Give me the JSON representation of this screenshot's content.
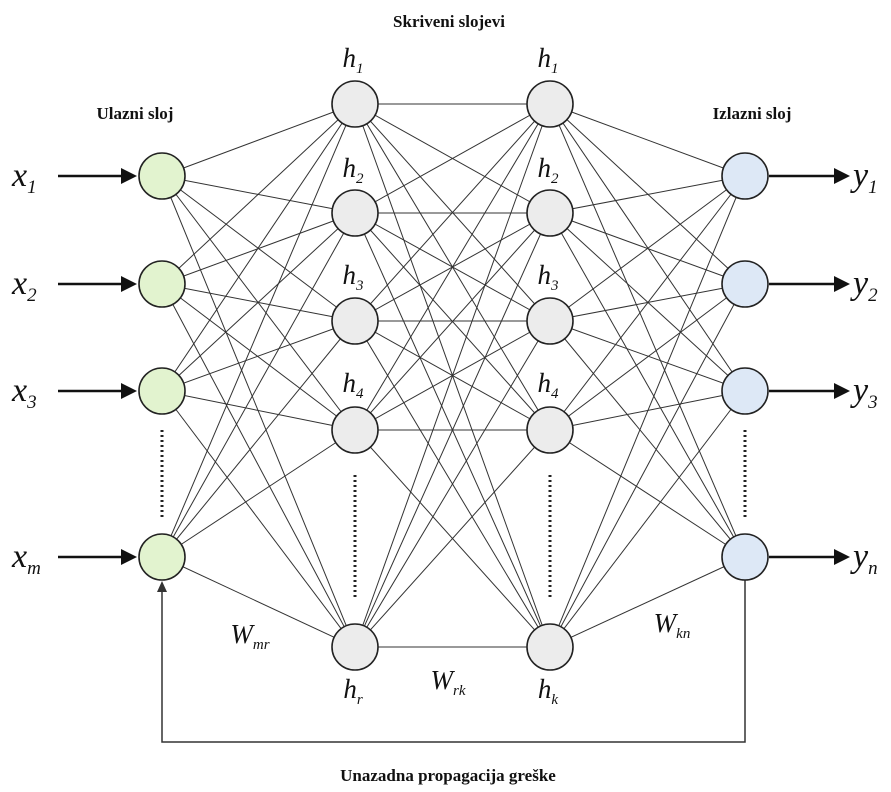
{
  "labels": {
    "hidden_layers": "Skriveni slojevi",
    "input_layer": "Ulazni sloj",
    "output_layer": "Izlazni sloj",
    "backprop": "Unazadna propagacija greške"
  },
  "inputs": [
    {
      "base": "x",
      "sub": "1"
    },
    {
      "base": "x",
      "sub": "2"
    },
    {
      "base": "x",
      "sub": "3"
    },
    {
      "base": "x",
      "sub": "m"
    }
  ],
  "hidden1": [
    {
      "base": "h",
      "sub": "1"
    },
    {
      "base": "h",
      "sub": "2"
    },
    {
      "base": "h",
      "sub": "3"
    },
    {
      "base": "h",
      "sub": "4"
    },
    {
      "base": "h",
      "sub": "r"
    }
  ],
  "hidden2": [
    {
      "base": "h",
      "sub": "1"
    },
    {
      "base": "h",
      "sub": "2"
    },
    {
      "base": "h",
      "sub": "3"
    },
    {
      "base": "h",
      "sub": "4"
    },
    {
      "base": "h",
      "sub": "k"
    }
  ],
  "outputs": [
    {
      "base": "y",
      "sub": "1"
    },
    {
      "base": "y",
      "sub": "2"
    },
    {
      "base": "y",
      "sub": "3"
    },
    {
      "base": "y",
      "sub": "n"
    }
  ],
  "weights": [
    {
      "base": "W",
      "sub": "mr"
    },
    {
      "base": "W",
      "sub": "rk"
    },
    {
      "base": "W",
      "sub": "kn"
    }
  ],
  "colors": {
    "input_fill": "#e2f3cf",
    "hidden_fill": "#ececec",
    "output_fill": "#dde8f6"
  }
}
